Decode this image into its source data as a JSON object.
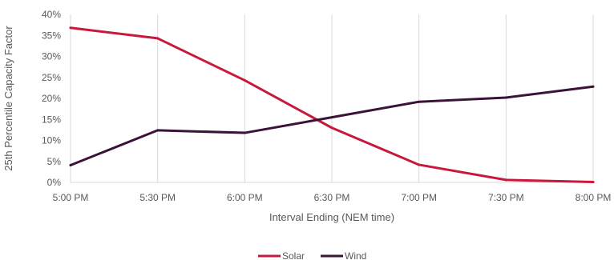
{
  "chart_data": {
    "type": "line",
    "title": "",
    "xlabel": "Interval Ending (NEM time)",
    "ylabel": "25th Percentile Capacity Factor",
    "categories": [
      "5:00 PM",
      "5:30 PM",
      "6:00 PM",
      "6:30 PM",
      "7:00 PM",
      "7:30 PM",
      "8:00 PM"
    ],
    "ylim": [
      0,
      40
    ],
    "yticks": [
      "0%",
      "5%",
      "10%",
      "15%",
      "20%",
      "25%",
      "30%",
      "35%",
      "40%"
    ],
    "grid": "vertical",
    "legend_position": "bottom",
    "series": [
      {
        "name": "Solar",
        "color": "#c8193c",
        "values": [
          36.8,
          34.3,
          24.3,
          13.0,
          4.2,
          0.6,
          0.1
        ]
      },
      {
        "name": "Wind",
        "color": "#3b1238",
        "values": [
          4.1,
          12.4,
          11.8,
          15.5,
          19.2,
          20.2,
          22.8
        ]
      }
    ]
  }
}
